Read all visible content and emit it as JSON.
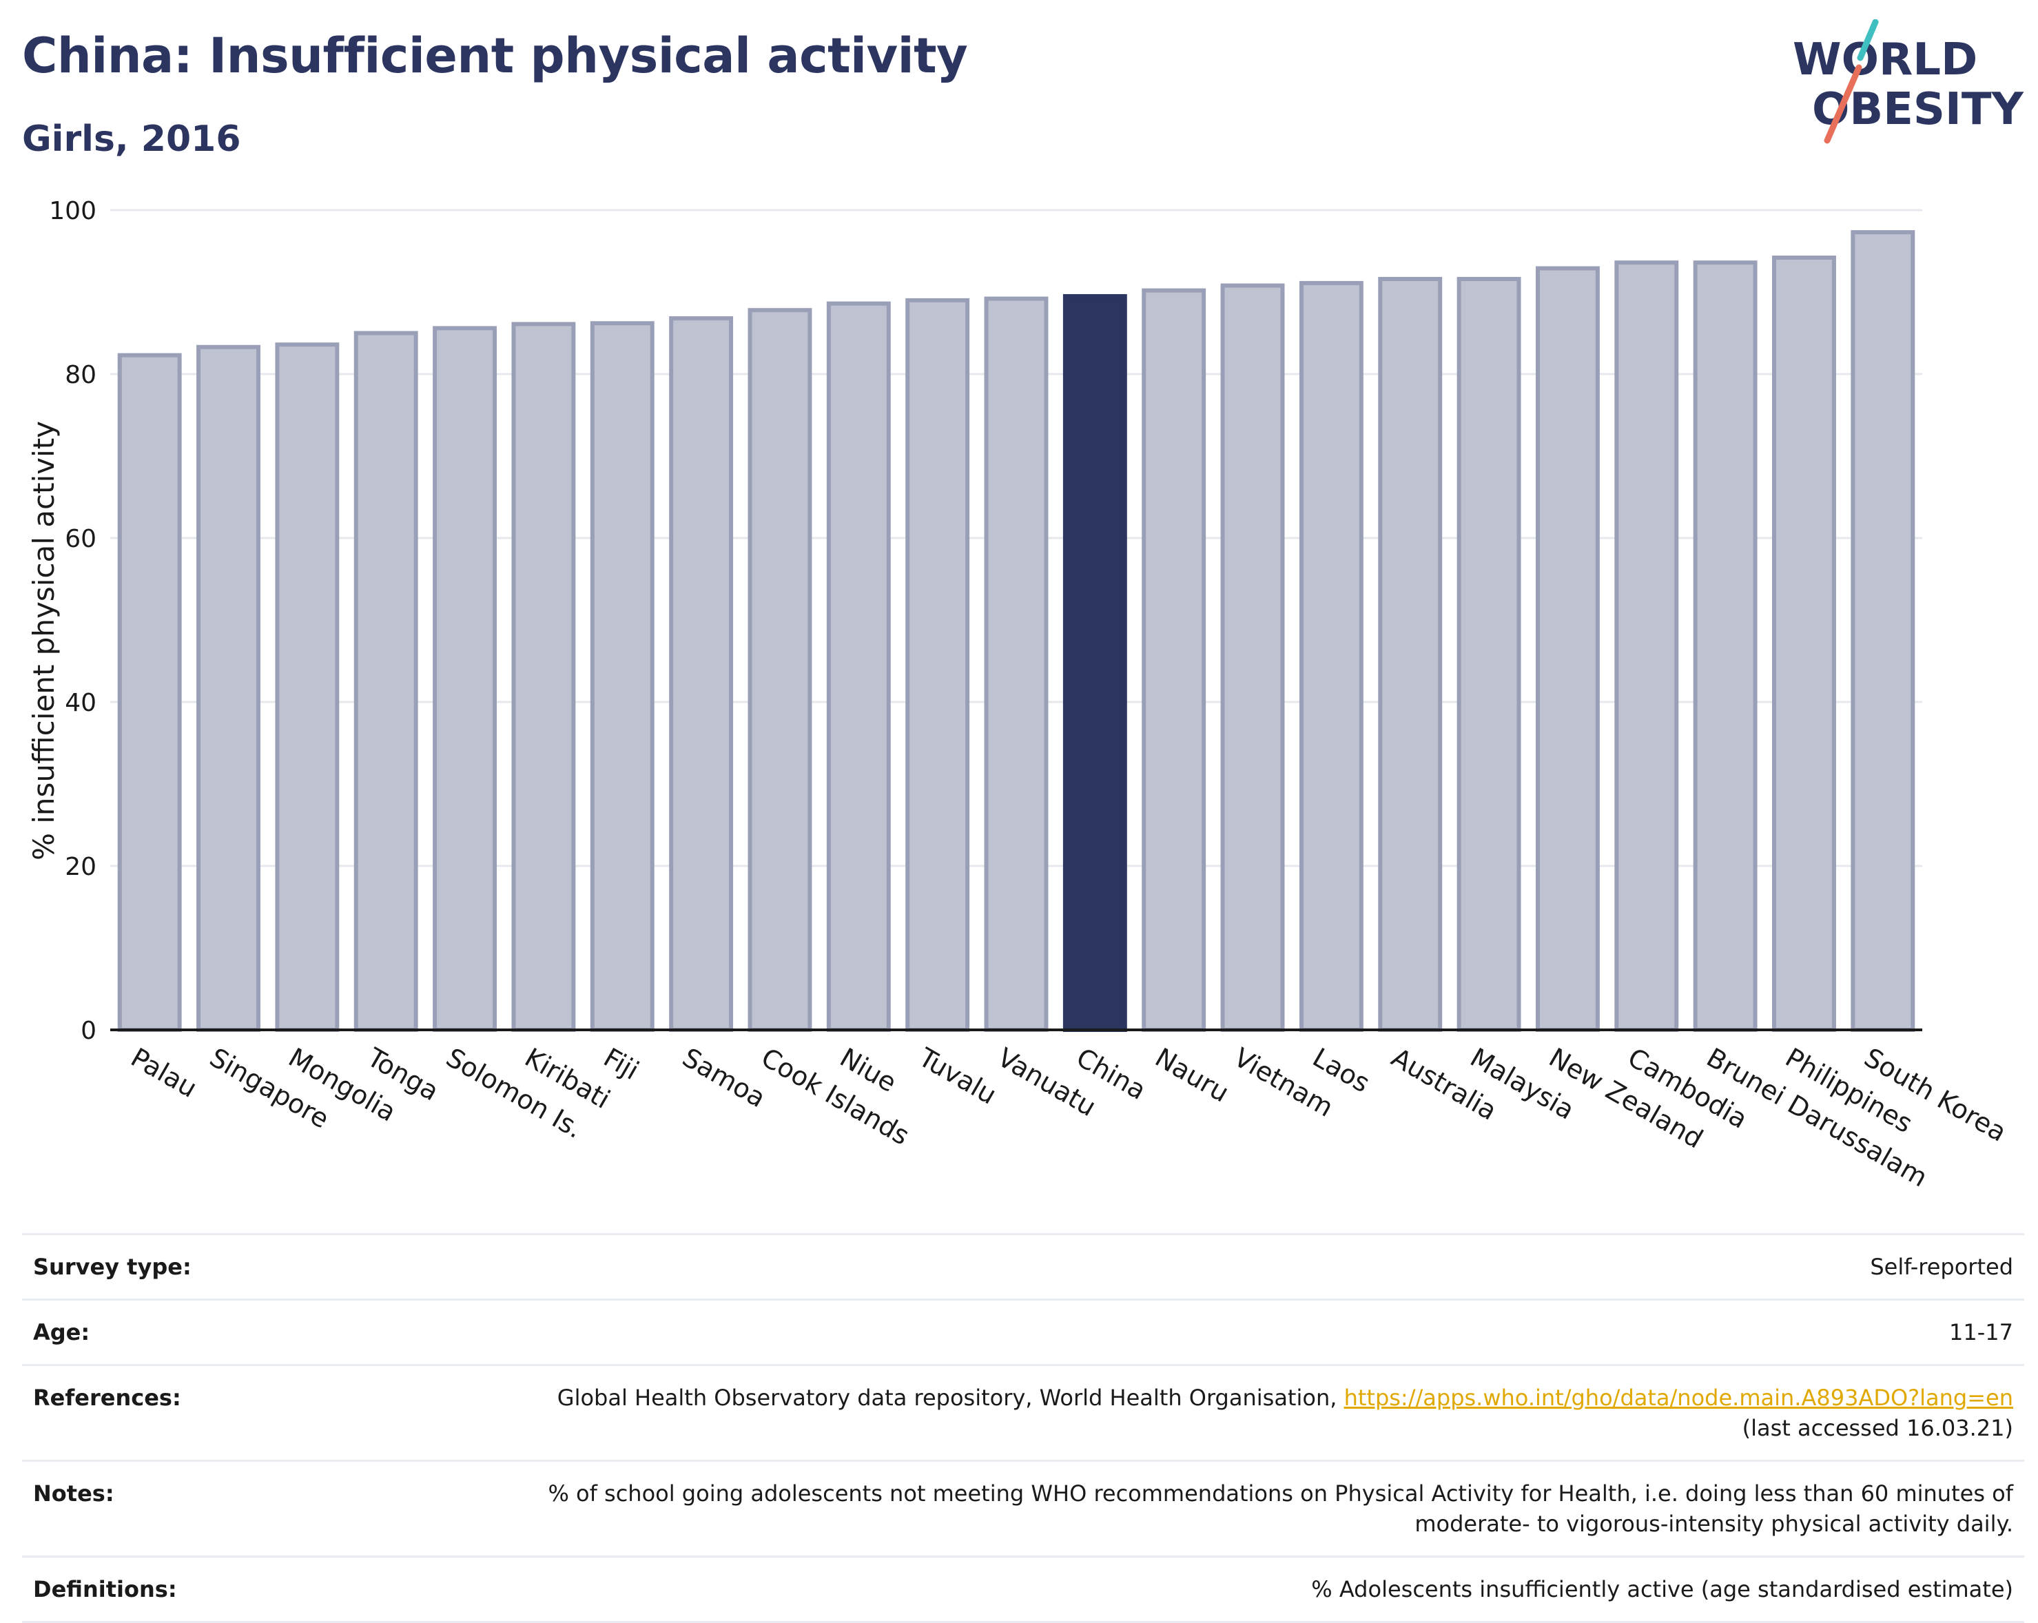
{
  "title": "China: Insufficient physical activity",
  "subtitle": "Girls, 2016",
  "logo": {
    "line1": "WORLD",
    "line2": "OBESITY",
    "accent_colors": [
      "#3fbfbf",
      "#e8705a"
    ]
  },
  "colors": {
    "highlight": "#2b3560",
    "bar": "#bfc2d0",
    "bar_edge": "#9a9fb8",
    "grid": "#e6e8ee",
    "text": "#2b3560"
  },
  "chart_data": {
    "type": "bar",
    "title": "China: Insufficient physical activity",
    "subtitle": "Girls, 2016",
    "xlabel": "",
    "ylabel": "% insufficient physical activity",
    "ylim": [
      0,
      100
    ],
    "yticks": [
      0,
      20,
      40,
      60,
      80,
      100
    ],
    "grid": true,
    "highlight": "China",
    "categories": [
      "Palau",
      "Singapore",
      "Mongolia",
      "Tonga",
      "Solomon Is.",
      "Kiribati",
      "Fiji",
      "Samoa",
      "Cook Islands",
      "Niue",
      "Tuvalu",
      "Vanuatu",
      "China",
      "Nauru",
      "Vietnam",
      "Laos",
      "Australia",
      "Malaysia",
      "New Zealand",
      "Cambodia",
      "Brunei Darussalam",
      "Philippines",
      "South Korea"
    ],
    "values": [
      82.3,
      83.3,
      83.6,
      85.0,
      85.6,
      86.1,
      86.2,
      86.8,
      87.8,
      88.6,
      89.0,
      89.2,
      89.5,
      90.2,
      90.8,
      91.1,
      91.6,
      91.6,
      92.9,
      93.6,
      93.6,
      94.2,
      97.3
    ]
  },
  "info": {
    "survey_type": {
      "label": "Survey type:",
      "value": "Self-reported"
    },
    "age": {
      "label": "Age:",
      "value": "11-17"
    },
    "references": {
      "label": "References:",
      "text": "Global Health Observatory data repository, World Health Organisation, ",
      "link": "https://apps.who.int/gho/data/node.main.A893ADO?lang=en",
      "accessed": "(last accessed 16.03.21)"
    },
    "notes": {
      "label": "Notes:",
      "line1": "% of school going adolescents not meeting WHO recommendations on Physical Activity for Health, i.e. doing less than 60 minutes of",
      "line2": "moderate- to vigorous-intensity physical activity daily."
    },
    "definitions": {
      "label": "Definitions:",
      "value": "% Adolescents insufficiently active (age standardised estimate)"
    }
  }
}
